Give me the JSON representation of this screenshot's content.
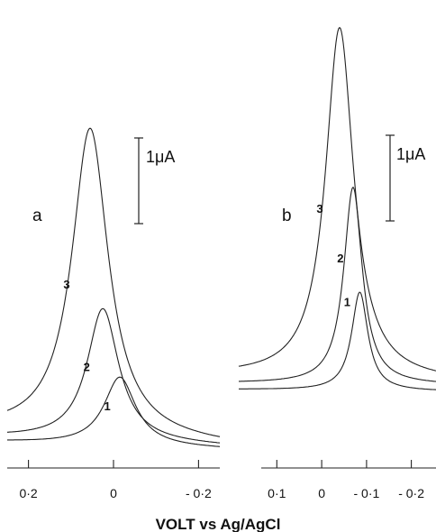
{
  "chart_data": [
    {
      "type": "line",
      "panel_label": "a",
      "scale_bar_label": "1μA",
      "x_ticks": [
        0.2,
        0,
        -0.2
      ],
      "x_tick_labels": [
        "0·2",
        "0",
        "- 0·2"
      ],
      "xlim": [
        0.25,
        -0.25
      ],
      "series": [
        {
          "label": "1",
          "peak_potential_V": -0.015,
          "peak_height_uA": 0.8
        },
        {
          "label": "2",
          "peak_potential_V": 0.025,
          "peak_height_uA": 1.55
        },
        {
          "label": "3",
          "peak_potential_V": 0.055,
          "peak_height_uA": 3.6
        }
      ]
    },
    {
      "type": "line",
      "panel_label": "b",
      "scale_bar_label": "1μA",
      "x_ticks": [
        0.1,
        0,
        -0.1,
        -0.2
      ],
      "x_tick_labels": [
        "0·1",
        "0",
        "- 0·1",
        "- 0·2"
      ],
      "xlim": [
        0.185,
        -0.255
      ],
      "series": [
        {
          "label": "1",
          "peak_potential_V": -0.085,
          "peak_height_uA": 1.15
        },
        {
          "label": "2",
          "peak_potential_V": -0.07,
          "peak_height_uA": 2.3
        },
        {
          "label": "3",
          "peak_potential_V": -0.04,
          "peak_height_uA": 4.1
        }
      ]
    }
  ],
  "xlabel": "VOLT vs Ag/AgCl"
}
